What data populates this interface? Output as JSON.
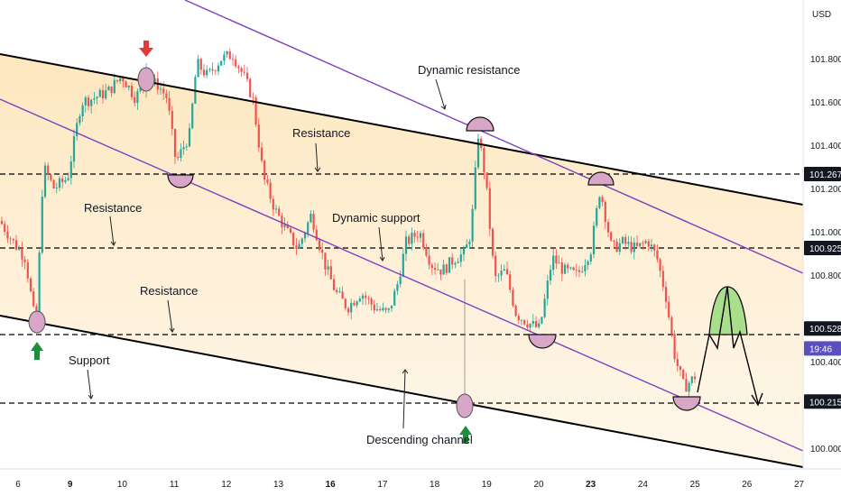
{
  "chart_data": {
    "type": "candlestick",
    "title": "",
    "currency": "USD",
    "y_range": [
      99.95,
      102.05
    ],
    "y_ticks": [
      {
        "value": 101.8,
        "label": "101.800"
      },
      {
        "value": 101.6,
        "label": "101.600"
      },
      {
        "value": 101.4,
        "label": "101.400"
      },
      {
        "value": 101.2,
        "label": "101.200"
      },
      {
        "value": 101.0,
        "label": "101.000"
      },
      {
        "value": 100.8,
        "label": "100.800"
      },
      {
        "value": 100.4,
        "label": "100.400"
      },
      {
        "value": 100.0,
        "label": "100.000"
      }
    ],
    "x_ticks": [
      {
        "label": "6",
        "bold": false
      },
      {
        "label": "9",
        "bold": true
      },
      {
        "label": "10",
        "bold": false
      },
      {
        "label": "11",
        "bold": false
      },
      {
        "label": "12",
        "bold": false
      },
      {
        "label": "13",
        "bold": false
      },
      {
        "label": "16",
        "bold": true
      },
      {
        "label": "17",
        "bold": false
      },
      {
        "label": "18",
        "bold": false
      },
      {
        "label": "19",
        "bold": false
      },
      {
        "label": "20",
        "bold": false
      },
      {
        "label": "23",
        "bold": true
      },
      {
        "label": "24",
        "bold": false
      },
      {
        "label": "25",
        "bold": false
      },
      {
        "label": "26",
        "bold": false
      },
      {
        "label": "27",
        "bold": false
      }
    ],
    "price_labels": [
      {
        "value": 101.267,
        "label": "101.267",
        "color": "#131722"
      },
      {
        "value": 100.925,
        "label": "100.925",
        "color": "#131722"
      },
      {
        "value": 100.528,
        "label": "100.528",
        "color": "#131722"
      },
      {
        "value": 100.49,
        "label": "19:46",
        "color": "#5b4fbf"
      },
      {
        "value": 100.215,
        "label": "100.215",
        "color": "#131722"
      }
    ],
    "horizontal_levels": [
      101.267,
      100.925,
      100.528,
      100.215
    ],
    "annotations": [
      {
        "text": "Dynamic resistance"
      },
      {
        "text": "Resistance"
      },
      {
        "text": "Dynamic support"
      },
      {
        "text": "Resistance"
      },
      {
        "text": "Resistance"
      },
      {
        "text": "Support"
      },
      {
        "text": "Descending channel"
      }
    ],
    "colors": {
      "up": "#26a69a",
      "down": "#ef5350",
      "channel": "#000000",
      "dynamic": "#7e3fbf"
    }
  }
}
